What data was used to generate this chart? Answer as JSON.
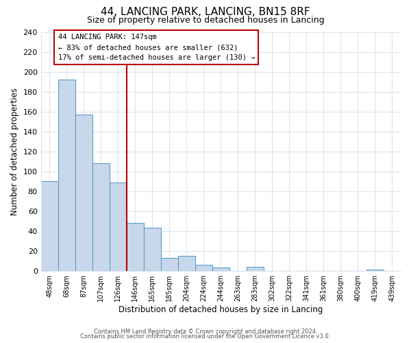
{
  "title": "44, LANCING PARK, LANCING, BN15 8RF",
  "subtitle": "Size of property relative to detached houses in Lancing",
  "xlabel": "Distribution of detached houses by size in Lancing",
  "ylabel": "Number of detached properties",
  "bar_labels": [
    "48sqm",
    "68sqm",
    "87sqm",
    "107sqm",
    "126sqm",
    "146sqm",
    "165sqm",
    "185sqm",
    "204sqm",
    "224sqm",
    "244sqm",
    "263sqm",
    "283sqm",
    "302sqm",
    "322sqm",
    "341sqm",
    "361sqm",
    "380sqm",
    "400sqm",
    "419sqm",
    "439sqm"
  ],
  "bar_heights": [
    90,
    192,
    157,
    108,
    89,
    48,
    43,
    13,
    15,
    6,
    3,
    0,
    4,
    0,
    0,
    0,
    0,
    0,
    0,
    1,
    0
  ],
  "bar_color": "#c8d8eb",
  "bar_edge_color": "#5a9ec8",
  "vline_color": "#bb0000",
  "annotation_title": "44 LANCING PARK: 147sqm",
  "annotation_line1": "← 83% of detached houses are smaller (632)",
  "annotation_line2": "17% of semi-detached houses are larger (130) →",
  "annotation_box_facecolor": "#ffffff",
  "annotation_box_edgecolor": "#bb0000",
  "ylim": [
    0,
    240
  ],
  "yticks": [
    0,
    20,
    40,
    60,
    80,
    100,
    120,
    140,
    160,
    180,
    200,
    220,
    240
  ],
  "footer1": "Contains HM Land Registry data © Crown copyright and database right 2024.",
  "footer2": "Contains public sector information licensed under the Open Government Licence v3.0.",
  "bg_color": "#ffffff",
  "plot_bg_color": "#ffffff",
  "grid_color": "#dde4ed"
}
